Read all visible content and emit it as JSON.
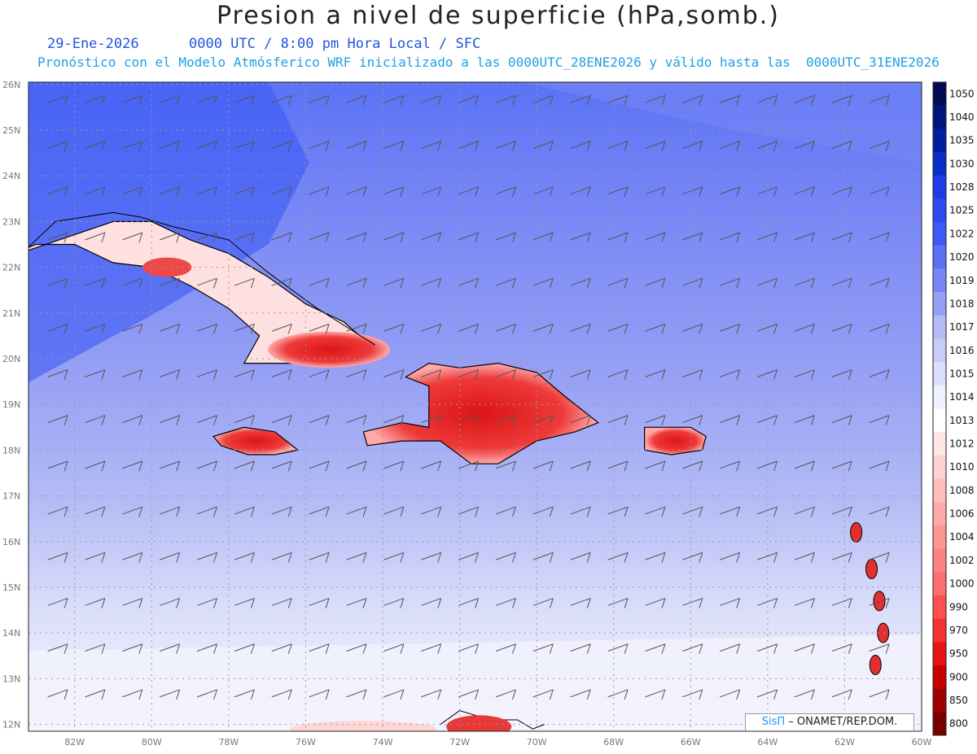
{
  "title": "Presion a nivel de superficie (hPa,somb.)",
  "subtitle_line1": "29-Ene-2026      0000 UTC / 8:00 pm Hora Local / SFC",
  "subtitle_line2": "Pronóstico con el Modelo Atmósferico WRF inicializado a las 0000UTC_28ENE2026 y válido hasta las  0000UTC_31ENE2026",
  "lat_labels": [
    "26N",
    "25N",
    "24N",
    "23N",
    "22N",
    "21N",
    "20N",
    "19N",
    "18N",
    "17N",
    "16N",
    "15N",
    "14N",
    "13N",
    "12N"
  ],
  "lon_labels": [
    "82W",
    "80W",
    "78W",
    "76W",
    "74W",
    "72W",
    "70W",
    "68W",
    "66W",
    "64W",
    "62W",
    "60W"
  ],
  "colorbar": {
    "levels": [
      "1050",
      "1040",
      "1035",
      "1030",
      "1028",
      "1025",
      "1022",
      "1020",
      "1019",
      "1018",
      "1017",
      "1016",
      "1015",
      "1014",
      "1013",
      "1012",
      "1010",
      "1008",
      "1006",
      "1004",
      "1002",
      "1000",
      "990",
      "970",
      "950",
      "900",
      "850",
      "800"
    ],
    "colors": [
      "#000a55",
      "#00147a",
      "#001ea0",
      "#0a2dc8",
      "#1e3ce6",
      "#2d4bf0",
      "#3c5af5",
      "#5a73f5",
      "#7887f5",
      "#96a0f5",
      "#b4bcf5",
      "#c8cdf7",
      "#dcdffa",
      "#eef0fd",
      "#ffffff",
      "#ffe6e6",
      "#ffd2d2",
      "#ffbebe",
      "#ffaaaa",
      "#ff9696",
      "#ff8282",
      "#ff6e6e",
      "#ff5050",
      "#f53232",
      "#e61414",
      "#c80000",
      "#a00000",
      "#780000"
    ]
  },
  "credit": {
    "brand": "SisΠ",
    "text": " – ONAMET/REP.DOM."
  },
  "regions": {
    "cuba_west": "-81,23 -80,23 -79,22.6 -78,22.3 -77,21.8 -76,21.2 -75,20.8 -74.2,20.2 -75,19.9 -76,19.9 -77.6,19.9 -77.2,20.5 -78,21.1 -79,21.6 -80,22 -81,22.1 -82,22.5 -83,22.5 -84.5,22",
    "hispaniola": "-74.5,18.4 -73.5,18.6 -72.8,18.5 -72.8,19.4 -73.4,19.6 -72.8,19.9 -72,19.8 -71,19.9 -70,19.7 -69.3,19.2 -68.4,18.6 -69,18.4 -70,18.2 -71,17.7 -71.7,17.7 -72.5,18.2 -73.5,18.2 -74.4,18.1",
    "jamaica": "-78.4,18.3 -77.6,18.5 -76.8,18.4 -76.2,18.0 -76.8,17.9 -77.5,17.9 -78.2,18.1",
    "puerto_rico": "-67.2,18.5 -66.0,18.5 -65.6,18.3 -65.7,18.0 -66.5,17.9 -67.2,18.0",
    "antilles": [
      [
        -61.7,
        16.2
      ],
      [
        -61.3,
        15.4
      ],
      [
        -61.1,
        14.7
      ],
      [
        -61.0,
        14.0
      ],
      [
        -61.2,
        13.3
      ]
    ],
    "coast_north": "-84,21.8 -82.5,23.0 -81,23.2 -80.3,23.1 -79.5,22.9 -78,22.6 -77,21.9 -75.7,21.1 -74.2,20.3",
    "venezuela": "-72.5,12 -72,12.3 -71.2,12.1 -70.5,12.1 -70.1,11.9 -69.8,12"
  }
}
